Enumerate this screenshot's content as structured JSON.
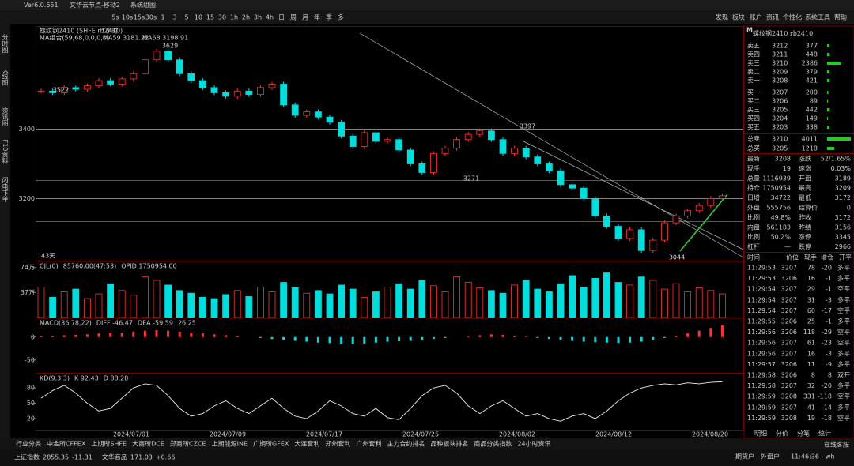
{
  "title_bar": {
    "app": "Ver6.0.651",
    "node": "文华云节点-移动2",
    "layout": "系统组图"
  },
  "toolbar": {
    "periods": [
      "5s",
      "10s",
      "15s",
      "30s",
      "1",
      "3",
      "5",
      "10",
      "15",
      "30",
      "1h",
      "2h",
      "3h",
      "4h",
      "日",
      "周",
      "月",
      "年",
      "季",
      "多"
    ],
    "menu": [
      "发现",
      "板块",
      "账户",
      "资讯",
      "个性化",
      "系统工具",
      "帮助"
    ]
  },
  "side_tabs": [
    "分时图",
    "K线图",
    "资讯图",
    "F10资料",
    "闪电下单"
  ],
  "chart": {
    "name": "螺纹钢2410 (SHFE rb2410)",
    "period": "1小时",
    "ma_label": "MA组合(59,68,0,0,0,0)",
    "ma59": "MA59 3181.22",
    "ma68": "MA68 3198.91",
    "annotations": [
      "3629",
      "3522",
      "3397",
      "3271",
      "3044",
      "43天"
    ],
    "ylim": [
      3021,
      3695
    ],
    "yticks": [
      3400,
      3200
    ],
    "closes": [
      3510,
      3505,
      3520,
      3515,
      3525,
      3540,
      3530,
      3545,
      3560,
      3600,
      3625,
      3600,
      3560,
      3540,
      3520,
      3505,
      3495,
      3510,
      3500,
      3520,
      3530,
      3470,
      3440,
      3450,
      3435,
      3420,
      3380,
      3350,
      3390,
      3365,
      3370,
      3340,
      3300,
      3275,
      3330,
      3345,
      3370,
      3385,
      3395,
      3370,
      3330,
      3345,
      3320,
      3300,
      3280,
      3240,
      3230,
      3200,
      3150,
      3120,
      3085,
      3110,
      3050,
      3080,
      3130,
      3150,
      3165,
      3180,
      3200,
      3208
    ]
  },
  "volume_pane": {
    "label": "CJL(0)",
    "cj": "85760.00(47:53)",
    "opid": "OPID 1750954.00",
    "ylim": [
      0,
      83
    ],
    "yticks": [
      {
        "value": 74,
        "label": "74万"
      },
      {
        "value": 37,
        "label": "37万"
      }
    ],
    "values": [
      45,
      30,
      38,
      42,
      28,
      35,
      50,
      40,
      33,
      60,
      55,
      48,
      40,
      36,
      30,
      28,
      34,
      40,
      31,
      45,
      38,
      52,
      44,
      36,
      40,
      35,
      48,
      42,
      30,
      38,
      45,
      50,
      42,
      55,
      47,
      38,
      60,
      52,
      44,
      40,
      36,
      48,
      55,
      42,
      38,
      50,
      62,
      45,
      58,
      66,
      52,
      48,
      60,
      55,
      42,
      50,
      38,
      44,
      40,
      35
    ]
  },
  "macd_pane": {
    "label": "MACD(36,78,22)",
    "diff": "DIFF -46.47",
    "dea": "DEA -59.59",
    "macd": "26.25",
    "ylim": [
      -78,
      41
    ],
    "yticks": [
      0,
      -50
    ],
    "values": [
      2,
      3,
      4,
      5,
      6,
      8,
      9,
      10,
      12,
      14,
      15,
      14,
      12,
      10,
      8,
      6,
      4,
      2,
      0,
      -2,
      -4,
      -6,
      -8,
      -10,
      -12,
      -13,
      -14,
      -15,
      -14,
      -12,
      -10,
      -9,
      -8,
      -6,
      -4,
      -2,
      0,
      2,
      4,
      6,
      5,
      3,
      1,
      -2,
      -4,
      -6,
      -8,
      -10,
      -11,
      -12,
      -13,
      -12,
      -10,
      -6,
      -2,
      3,
      8,
      14,
      20,
      26
    ]
  },
  "kd_pane": {
    "label": "KD(9,3,3)",
    "k": "K 92.43",
    "d": "D 88.28",
    "ylim": [
      -3,
      108
    ],
    "yticks": [
      80,
      50,
      20
    ],
    "values": [
      60,
      75,
      85,
      70,
      50,
      35,
      40,
      60,
      80,
      88,
      85,
      65,
      40,
      25,
      30,
      45,
      55,
      40,
      30,
      45,
      60,
      40,
      25,
      20,
      35,
      55,
      45,
      30,
      25,
      40,
      22,
      18,
      40,
      65,
      80,
      85,
      70,
      45,
      30,
      45,
      55,
      40,
      25,
      30,
      20,
      15,
      25,
      30,
      20,
      35,
      55,
      70,
      80,
      85,
      88,
      86,
      90,
      88,
      91,
      92
    ]
  },
  "dates": [
    "2024/07/01",
    "2024/07/09",
    "2024/07/17",
    "2024/07/25",
    "2024/08/02",
    "2024/08/12",
    "2024/08/20"
  ],
  "quote": {
    "badge": "M",
    "title": "螺纹钢2410 rb2410",
    "asks": [
      {
        "label": "卖五",
        "price": "3212",
        "volume": 377
      },
      {
        "label": "卖四",
        "price": "3211",
        "volume": 448
      },
      {
        "label": "卖三",
        "price": "3210",
        "volume": 2386
      },
      {
        "label": "卖二",
        "price": "3209",
        "volume": 379
      },
      {
        "label": "卖一",
        "price": "3208",
        "volume": 421
      }
    ],
    "bids": [
      {
        "label": "买一",
        "price": "3207",
        "volume": 200
      },
      {
        "label": "买二",
        "price": "3206",
        "volume": 89
      },
      {
        "label": "买三",
        "price": "3205",
        "volume": 442
      },
      {
        "label": "买四",
        "price": "3204",
        "volume": 149
      },
      {
        "label": "买五",
        "price": "3203",
        "volume": 338
      }
    ],
    "totals": [
      {
        "label": "总卖",
        "price": "3210",
        "volume": 4011
      },
      {
        "label": "总买",
        "price": "3205",
        "volume": 1218
      }
    ],
    "stats": [
      [
        "最新",
        "3208",
        "涨跌",
        "52/1.65%"
      ],
      [
        "现手",
        "19",
        "速涨",
        "0.03%"
      ],
      [
        "总量",
        "1116939",
        "开盘",
        "3189"
      ],
      [
        "持仓",
        "1750954",
        "最高",
        "3209"
      ],
      [
        "日增",
        "34722",
        "最低",
        "3172"
      ],
      [
        "外盘",
        "555756",
        "结算价",
        "0"
      ],
      [
        "比例",
        "49.8%",
        "昨收",
        "3172"
      ],
      [
        "内盘",
        "561183",
        "昨结",
        "3156"
      ],
      [
        "比例",
        "50.2%",
        "涨停",
        "3345"
      ],
      [
        "杠杆",
        "—",
        "跌停",
        "2966"
      ]
    ],
    "trade_header": [
      "时间",
      "价位",
      "现手",
      "增仓",
      "开平"
    ],
    "trades": [
      [
        "11:29:53",
        "3207",
        "78",
        "-20",
        "多平"
      ],
      [
        "11:29:53",
        "3206",
        "16",
        "-1",
        "多平"
      ],
      [
        "11:29:54",
        "3207",
        "29",
        "-1",
        "空平"
      ],
      [
        "11:29:54",
        "3207",
        "31",
        "-3",
        "多平"
      ],
      [
        "11:29:54",
        "3207",
        "60",
        "-17",
        "空平"
      ],
      [
        "11:29:55",
        "3206",
        "25",
        "-1",
        "多平"
      ],
      [
        "11:29:56",
        "3206",
        "118",
        "-29",
        "空平"
      ],
      [
        "11:29:56",
        "3207",
        "61",
        "-23",
        "空平"
      ],
      [
        "11:29:56",
        "3207",
        "16",
        "-3",
        "多平"
      ],
      [
        "11:29:57",
        "3206",
        "11",
        "-9",
        "多平"
      ],
      [
        "11:29:58",
        "3206",
        "8",
        "8",
        "双开"
      ],
      [
        "11:29:58",
        "3207",
        "32",
        "-20",
        "多平"
      ],
      [
        "11:29:59",
        "3208",
        "331",
        "-118",
        "空平"
      ],
      [
        "11:29:59",
        "3207",
        "41",
        "-14",
        "多平"
      ],
      [
        "11:29:59",
        "3208",
        "19",
        "-18",
        "空平"
      ]
    ],
    "tabs": [
      "明细",
      "分价",
      "分笔",
      "统计"
    ]
  },
  "markets": [
    "行业分类",
    "中金所CFFEX",
    "上期所SHFE",
    "大商所DCE",
    "郑商所CZCE",
    "上期能源INE",
    "广期所GFEX",
    "大连套利",
    "郑州套利",
    "广州套利",
    "主力合约排名",
    "品种板块排名",
    "商品分类指数",
    "24小时资讯"
  ],
  "status": {
    "index_name": "上证指数",
    "index_value": "2855.35",
    "index_change": "-11.31",
    "wh_name": "文华商品",
    "wh_value": "171.03",
    "wh_change": "+0.66",
    "account1": "期货户",
    "account2": "外盘户",
    "time": "11:46:36 - wh",
    "service": "在线客服"
  }
}
